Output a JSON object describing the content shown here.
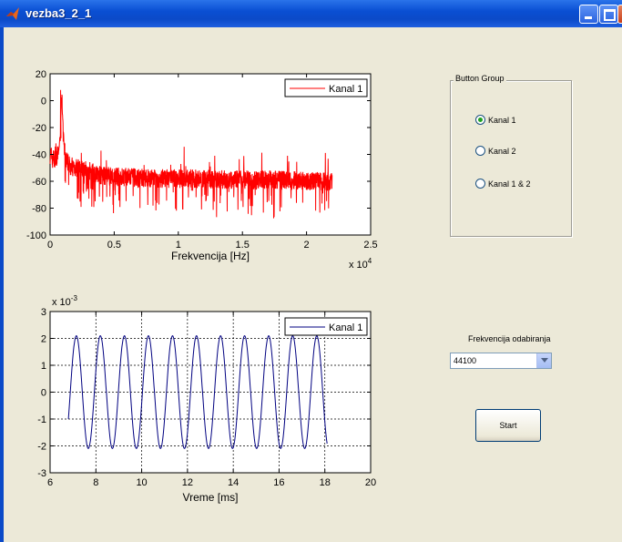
{
  "window": {
    "title": "vezba3_2_1"
  },
  "button_group": {
    "title": "Button Group",
    "options": [
      {
        "label": "Kanal 1",
        "selected": true
      },
      {
        "label": "Kanal 2",
        "selected": false
      },
      {
        "label": "Kanal 1 & 2",
        "selected": false
      }
    ]
  },
  "frequency": {
    "label": "Frekvencija odabiranja",
    "value": "44100"
  },
  "start_button": {
    "label": "Start"
  },
  "chart_data": [
    {
      "type": "line",
      "xlabel": "Frekvencija [Hz]",
      "x_exponent": "x 10",
      "x_exponent_power": "4",
      "xlim": [
        0,
        25000
      ],
      "ylim": [
        -100,
        20
      ],
      "xticks": [
        "0",
        "0.5",
        "1",
        "1.5",
        "2",
        "2.5"
      ],
      "yticks": [
        "20",
        "0",
        "-20",
        "-40",
        "-60",
        "-80",
        "-100"
      ],
      "grid": false,
      "legend": {
        "position": "top-right",
        "entries": [
          "Kanal 1"
        ]
      },
      "series": [
        {
          "name": "Kanal 1",
          "color": "#ff0000",
          "x": [
            0,
            200,
            400,
            600,
            700,
            800,
            900,
            1000,
            1100,
            1200,
            1500,
            2000,
            3000,
            4000,
            6000,
            8000,
            10000,
            12000,
            14000,
            16000,
            18000,
            20000,
            22000
          ],
          "y": [
            -40,
            -42,
            -45,
            -40,
            -35,
            -25,
            8,
            -22,
            -35,
            -42,
            -48,
            -50,
            -52,
            -56,
            -57,
            -58,
            -58,
            -58,
            -59,
            -59,
            -59,
            -60,
            -60
          ]
        }
      ]
    },
    {
      "type": "line",
      "xlabel": "Vreme [ms]",
      "y_exponent": "x 10",
      "y_exponent_power": "-3",
      "xlim": [
        6,
        20
      ],
      "ylim": [
        -3,
        3
      ],
      "xticks": [
        "6",
        "8",
        "10",
        "12",
        "14",
        "16",
        "18",
        "20"
      ],
      "yticks": [
        "3",
        "2",
        "1",
        "0",
        "-1",
        "-2",
        "-3"
      ],
      "grid": true,
      "legend": {
        "position": "top-right",
        "entries": [
          "Kanal 1"
        ]
      },
      "series": [
        {
          "name": "Kanal 1",
          "color": "#000080",
          "amplitude": 2.1,
          "period_ms": 1.05,
          "x_start": 6.8,
          "x_end": 18.1,
          "start_value": -1
        }
      ]
    }
  ]
}
